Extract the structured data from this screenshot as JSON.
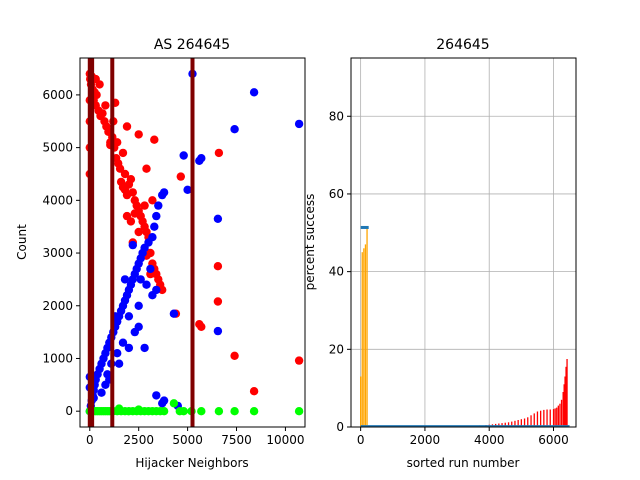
{
  "chart_data": [
    {
      "type": "scatter",
      "title": "AS 264645",
      "xlabel": "Hijacker Neighbors",
      "ylabel": "Count",
      "xlim": [
        -500,
        11000
      ],
      "ylim": [
        -300,
        6700
      ],
      "xticks": [
        0,
        2500,
        5000,
        7500,
        10000
      ],
      "yticks": [
        0,
        1000,
        2000,
        3000,
        4000,
        5000,
        6000
      ],
      "vlines": [
        0,
        120,
        1150,
        5250
      ],
      "vline_color": "#800000",
      "series": [
        {
          "color": "#ff0000",
          "points": [
            [
              0,
              6400
            ],
            [
              20,
              6300
            ],
            [
              60,
              6200
            ],
            [
              100,
              6350
            ],
            [
              150,
              6100
            ],
            [
              200,
              5900
            ],
            [
              250,
              6050
            ],
            [
              300,
              5800
            ],
            [
              350,
              6000
            ],
            [
              450,
              5700
            ],
            [
              550,
              5600
            ],
            [
              650,
              5650
            ],
            [
              750,
              5500
            ],
            [
              850,
              5400
            ],
            [
              950,
              5300
            ],
            [
              1050,
              5100
            ],
            [
              1150,
              5200
            ],
            [
              1250,
              5000
            ],
            [
              1350,
              4800
            ],
            [
              1450,
              4700
            ],
            [
              1550,
              4600
            ],
            [
              1600,
              4350
            ],
            [
              1700,
              4250
            ],
            [
              1800,
              4200
            ],
            [
              1900,
              4100
            ],
            [
              2000,
              4300
            ],
            [
              2100,
              4400
            ],
            [
              2200,
              4150
            ],
            [
              2300,
              4000
            ],
            [
              2400,
              3900
            ],
            [
              2500,
              3800
            ],
            [
              2600,
              3700
            ],
            [
              2700,
              3600
            ],
            [
              2800,
              3500
            ],
            [
              2900,
              3400
            ],
            [
              3000,
              3300
            ],
            [
              3100,
              3000
            ],
            [
              3200,
              2800
            ],
            [
              3300,
              2700
            ],
            [
              3400,
              2600
            ],
            [
              3500,
              2500
            ],
            [
              3600,
              2400
            ],
            [
              3700,
              2300
            ],
            [
              1900,
              3700
            ],
            [
              2200,
              3200
            ],
            [
              2800,
              3900
            ],
            [
              3200,
              4000
            ],
            [
              2500,
              5250
            ],
            [
              3300,
              5150
            ],
            [
              2900,
              4600
            ],
            [
              1900,
              5400
            ],
            [
              1300,
              5850
            ],
            [
              1700,
              4900
            ],
            [
              2100,
              3600
            ],
            [
              2500,
              3400
            ],
            [
              3100,
              2600
            ],
            [
              4650,
              4450
            ],
            [
              6600,
              4900
            ],
            [
              6550,
              2750
            ],
            [
              6550,
              2080
            ],
            [
              5600,
              1650
            ],
            [
              5700,
              1600
            ],
            [
              7400,
              1050
            ],
            [
              8400,
              380
            ],
            [
              10700,
              960
            ],
            [
              4400,
              1850
            ],
            [
              2900,
              2950
            ],
            [
              1050,
              5050
            ],
            [
              2300,
              3750
            ],
            [
              0,
              5900
            ],
            [
              0,
              5500
            ],
            [
              0,
              5000
            ],
            [
              0,
              4500
            ],
            [
              300,
              6300
            ],
            [
              500,
              6200
            ],
            [
              800,
              5800
            ],
            [
              1200,
              5500
            ],
            [
              1400,
              5100
            ],
            [
              1800,
              4500
            ]
          ]
        },
        {
          "color": "#0000ff",
          "points": [
            [
              0,
              0
            ],
            [
              50,
              100
            ],
            [
              100,
              200
            ],
            [
              150,
              300
            ],
            [
              200,
              400
            ],
            [
              250,
              500
            ],
            [
              300,
              600
            ],
            [
              400,
              700
            ],
            [
              500,
              800
            ],
            [
              600,
              900
            ],
            [
              700,
              1000
            ],
            [
              800,
              1100
            ],
            [
              900,
              1200
            ],
            [
              1000,
              1300
            ],
            [
              1100,
              1400
            ],
            [
              1200,
              1500
            ],
            [
              1300,
              1600
            ],
            [
              1400,
              1700
            ],
            [
              1500,
              1800
            ],
            [
              1600,
              1900
            ],
            [
              1700,
              2000
            ],
            [
              1800,
              2100
            ],
            [
              1900,
              2200
            ],
            [
              2000,
              2300
            ],
            [
              2100,
              2400
            ],
            [
              2200,
              2500
            ],
            [
              2300,
              2600
            ],
            [
              2400,
              2700
            ],
            [
              2500,
              2800
            ],
            [
              2600,
              2900
            ],
            [
              2700,
              3000
            ],
            [
              2800,
              3100
            ],
            [
              3000,
              3200
            ],
            [
              3200,
              3300
            ],
            [
              3300,
              3500
            ],
            [
              3400,
              3700
            ],
            [
              3500,
              3900
            ],
            [
              3700,
              4100
            ],
            [
              3800,
              4150
            ],
            [
              2200,
              3150
            ],
            [
              2600,
              2500
            ],
            [
              3200,
              2200
            ],
            [
              3400,
              2300
            ],
            [
              2000,
              1800
            ],
            [
              1400,
              1100
            ],
            [
              900,
              700
            ],
            [
              1700,
              1300
            ],
            [
              2500,
              1600
            ],
            [
              4300,
              1850
            ],
            [
              2800,
              1200
            ],
            [
              3400,
              300
            ],
            [
              3800,
              200
            ],
            [
              4500,
              100
            ],
            [
              3700,
              150
            ],
            [
              4800,
              4850
            ],
            [
              5700,
              4800
            ],
            [
              5600,
              4750
            ],
            [
              5000,
              4200
            ],
            [
              6550,
              3650
            ],
            [
              6550,
              1520
            ],
            [
              7400,
              5350
            ],
            [
              8400,
              6050
            ],
            [
              10700,
              5450
            ],
            [
              5250,
              6400
            ],
            [
              1100,
              900
            ],
            [
              2300,
              1500
            ],
            [
              800,
              500
            ],
            [
              0,
              650
            ],
            [
              0,
              450
            ],
            [
              200,
              250
            ],
            [
              600,
              350
            ],
            [
              1000,
              600
            ],
            [
              1500,
              900
            ],
            [
              2000,
              1200
            ],
            [
              2500,
              2000
            ],
            [
              2900,
              2400
            ],
            [
              3100,
              2700
            ],
            [
              1800,
              2500
            ],
            [
              1300,
              1800
            ]
          ]
        },
        {
          "color": "#00ff00",
          "points": [
            [
              0,
              0
            ],
            [
              100,
              0
            ],
            [
              200,
              0
            ],
            [
              300,
              0
            ],
            [
              400,
              0
            ],
            [
              500,
              0
            ],
            [
              600,
              0
            ],
            [
              700,
              0
            ],
            [
              800,
              0
            ],
            [
              900,
              0
            ],
            [
              1000,
              0
            ],
            [
              1200,
              0
            ],
            [
              1400,
              0
            ],
            [
              1600,
              0
            ],
            [
              1800,
              0
            ],
            [
              2000,
              0
            ],
            [
              2200,
              0
            ],
            [
              2400,
              0
            ],
            [
              2600,
              0
            ],
            [
              2800,
              0
            ],
            [
              3000,
              0
            ],
            [
              3200,
              0
            ],
            [
              3400,
              0
            ],
            [
              3600,
              0
            ],
            [
              3800,
              0
            ],
            [
              4300,
              150
            ],
            [
              4600,
              0
            ],
            [
              4800,
              0
            ],
            [
              5200,
              0
            ],
            [
              5700,
              0
            ],
            [
              6600,
              0
            ],
            [
              7400,
              0
            ],
            [
              8400,
              0
            ],
            [
              10700,
              0
            ],
            [
              1500,
              50
            ],
            [
              2500,
              30
            ]
          ]
        }
      ]
    },
    {
      "type": "bar",
      "title": "264645",
      "xlabel": "sorted run number",
      "ylabel": "percent success",
      "xlim": [
        -300,
        6700
      ],
      "ylim": [
        0,
        95
      ],
      "xticks": [
        0,
        2000,
        4000,
        6000
      ],
      "yticks": [
        0,
        20,
        40,
        60,
        80
      ],
      "grid": true,
      "series": [
        {
          "name": "",
          "color": "#ff0000",
          "x": [
            3300,
            3500,
            3700,
            3900,
            4000,
            4100,
            4200,
            4300,
            4400,
            4500,
            4600,
            4700,
            4800,
            4900,
            5000,
            5100,
            5200,
            5300,
            5400,
            5500,
            5600,
            5700,
            5800,
            5900,
            6000,
            6050,
            6100,
            6150,
            6200,
            6250,
            6300,
            6330,
            6360,
            6390,
            6420
          ],
          "values": [
            0.2,
            0.3,
            0.4,
            0.5,
            0.6,
            0.7,
            0.8,
            0.9,
            1.0,
            1.1,
            1.2,
            1.4,
            1.6,
            1.8,
            2.0,
            2.2,
            2.5,
            3.0,
            3.5,
            4.0,
            4.2,
            4.4,
            4.5,
            4.5,
            4.6,
            4.8,
            5.0,
            5.5,
            6.0,
            7.0,
            9.0,
            11.0,
            13.0,
            15.5,
            17.5
          ]
        },
        {
          "name": "",
          "color": "#ffa500",
          "x": [
            0,
            50,
            100,
            150,
            200
          ],
          "values": [
            13,
            45,
            46,
            47,
            51
          ]
        },
        {
          "name": "",
          "color": "#1f77b4",
          "x": [
            0,
            6500
          ],
          "values": [
            0.3,
            0.3
          ]
        }
      ],
      "band": {
        "x": [
          0,
          250
        ],
        "y": [
          51,
          51.5
        ],
        "color": "#1f77b4"
      }
    }
  ]
}
